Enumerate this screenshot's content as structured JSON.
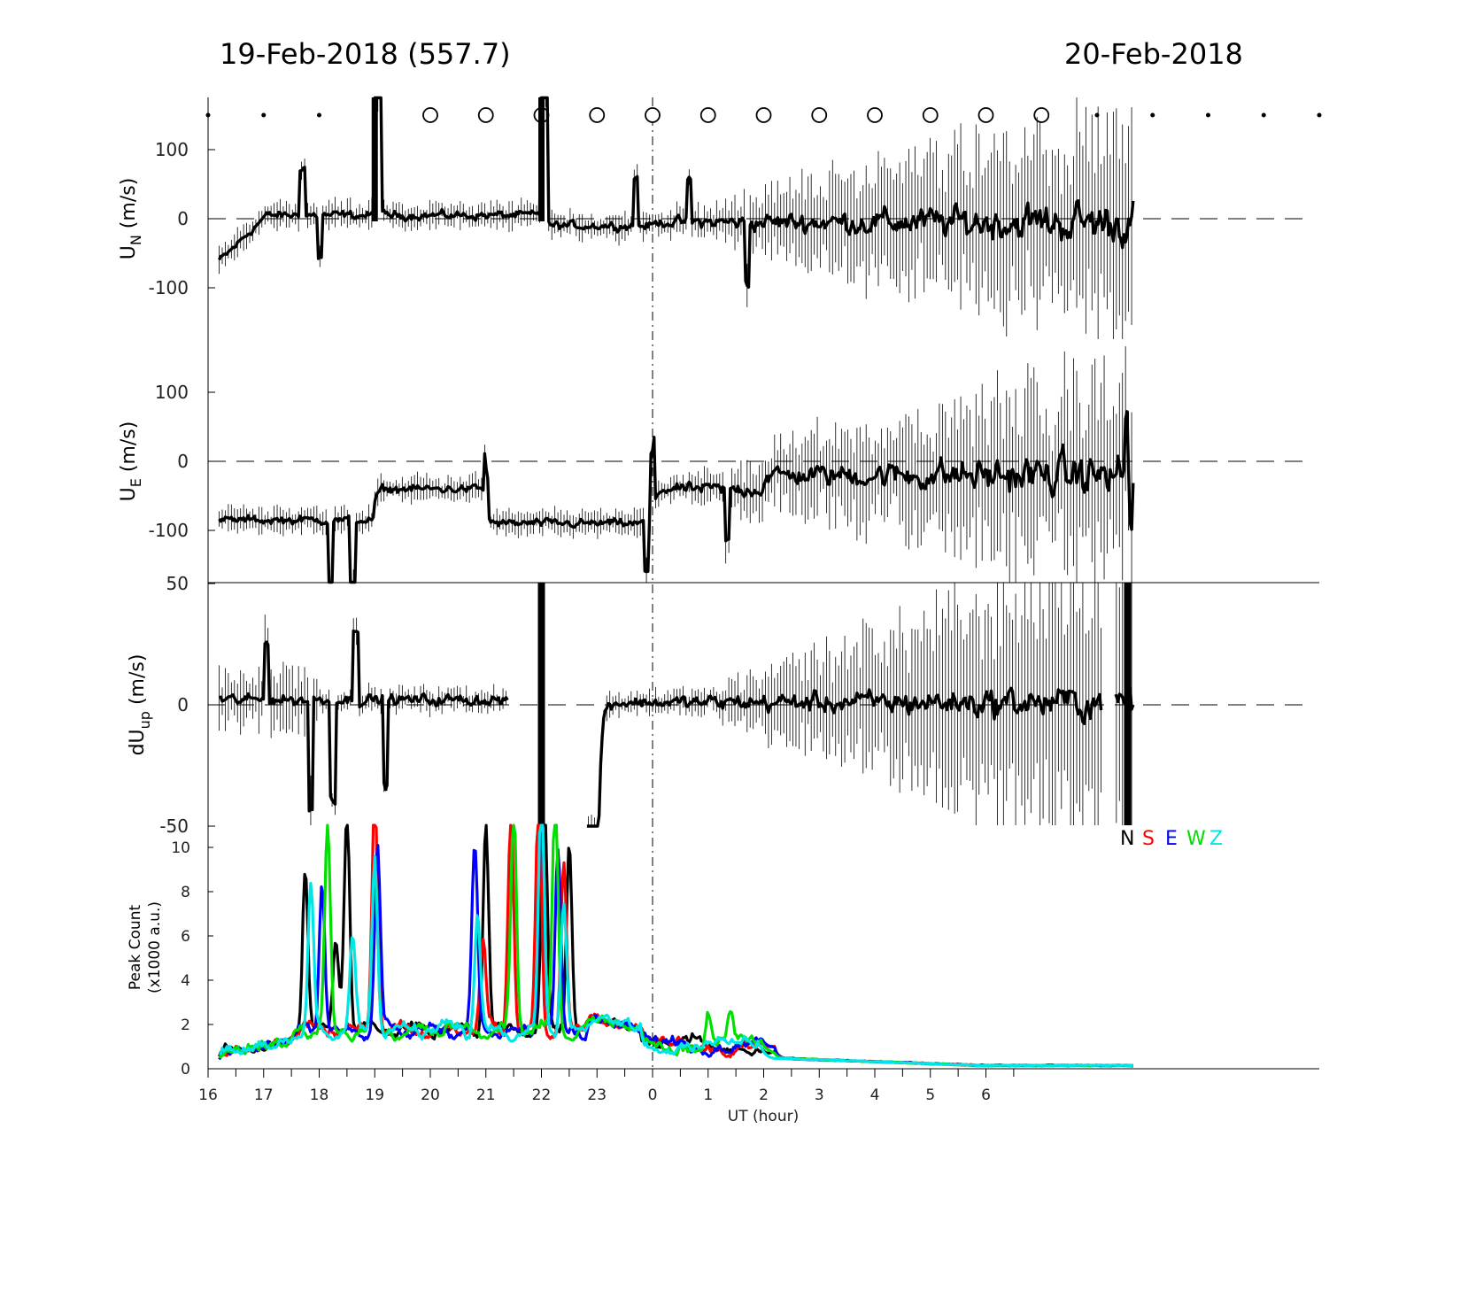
{
  "header": {
    "left_date": "19-Feb-2018 (557.7)",
    "right_date": "20-Feb-2018"
  },
  "colors": {
    "N": "#000000",
    "S": "#ff0000",
    "E": "#0000ff",
    "W": "#00e000",
    "Z": "#00e5e5"
  },
  "chart_data": [
    {
      "type": "line",
      "panel": "UN",
      "ylabel_main": "U",
      "ylabel_sub": "N",
      "ylabel_unit": " (m/s)",
      "yticks": [
        100,
        0,
        -100
      ],
      "ylim": [
        -175,
        175
      ],
      "x_range_hours": [
        -8,
        12
      ],
      "zero_line": "dashed",
      "data_start": -7.8,
      "data_end": 8.65,
      "observation_markers": {
        "open_circles": [
          17,
          18,
          19,
          20,
          21,
          22,
          23,
          24,
          25,
          26,
          27,
          28
        ],
        "dots": [
          13,
          14,
          15,
          16,
          29,
          30,
          31,
          32,
          33
        ]
      }
    },
    {
      "type": "line",
      "panel": "UE",
      "ylabel_main": "U",
      "ylabel_sub": "E",
      "ylabel_unit": " (m/s)",
      "yticks": [
        100,
        0,
        -100
      ],
      "ylim": [
        -175,
        175
      ],
      "zero_line": "dashed"
    },
    {
      "type": "line",
      "panel": "dUup",
      "ylabel_main": "dU",
      "ylabel_sub": "up",
      "ylabel_unit": " (m/s)",
      "yticks": [
        50,
        0,
        -50
      ],
      "ylim": [
        -50,
        50
      ],
      "zero_line": "dashed"
    },
    {
      "type": "line",
      "panel": "peak_count",
      "ylabel_line1": "Peak Count",
      "ylabel_line2": "(x1000 a.u.)",
      "yticks": [
        0,
        2,
        4,
        6,
        8,
        10
      ],
      "ylim": [
        0,
        11
      ],
      "legend": [
        "N",
        "S",
        "E",
        "W",
        "Z"
      ],
      "legend_position": "top-right",
      "series_names": [
        "N",
        "S",
        "E",
        "W",
        "Z"
      ]
    }
  ],
  "xaxis": {
    "label": "UT (hour)",
    "tick_labels": [
      "16",
      "17",
      "18",
      "19",
      "20",
      "21",
      "22",
      "23",
      "0",
      "1",
      "2",
      "3",
      "4",
      "5",
      "6"
    ],
    "midnight_marker": "dash-dot"
  }
}
